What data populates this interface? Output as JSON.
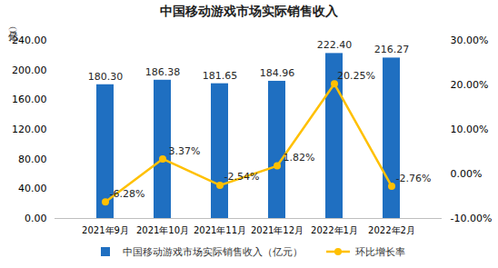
{
  "chart_data": {
    "type": "bar",
    "title": "中国移动游戏市场实际销售收入",
    "y_label": "（亿元）",
    "categories": [
      "2021年9月",
      "2021年10月",
      "2021年11月",
      "2021年12月",
      "2022年1月",
      "2022年2月"
    ],
    "series": [
      {
        "name": "中国移动游戏市场实际销售收入（亿元）",
        "type": "bar",
        "color": "#1f6fc1",
        "values": [
          180.3,
          186.38,
          181.65,
          184.96,
          222.4,
          216.27
        ],
        "value_labels": [
          "180.30",
          "186.38",
          "181.65",
          "184.96",
          "222.40",
          "216.27"
        ]
      },
      {
        "name": "环比增长率",
        "type": "line",
        "axis": "y2",
        "color": "#ffc000",
        "marker": "circle",
        "values": [
          -6.28,
          3.37,
          -2.54,
          1.82,
          20.25,
          -2.76
        ],
        "value_labels": [
          "-6.28%",
          "3.37%",
          "-2.54%",
          "1.82%",
          "20.25%",
          "-2.76%"
        ]
      }
    ],
    "ylim": [
      0,
      240
    ],
    "yticks": [
      {
        "value": 0,
        "label": "0.00"
      },
      {
        "value": 40,
        "label": "40.00"
      },
      {
        "value": 80,
        "label": "80.00"
      },
      {
        "value": 120,
        "label": "120.00"
      },
      {
        "value": 160,
        "label": "160.00"
      },
      {
        "value": 200,
        "label": "200.00"
      },
      {
        "value": 240,
        "label": "240.00"
      }
    ],
    "y2lim": [
      -10,
      30
    ],
    "y2ticks": [
      {
        "value": -10,
        "label": "-10.00%"
      },
      {
        "value": 0,
        "label": "0.00%"
      },
      {
        "value": 10,
        "label": "10.00%"
      },
      {
        "value": 20,
        "label": "20.00%"
      },
      {
        "value": 30,
        "label": "30.00%"
      }
    ],
    "grid": false,
    "legend": "bottom",
    "data_labels": true
  }
}
